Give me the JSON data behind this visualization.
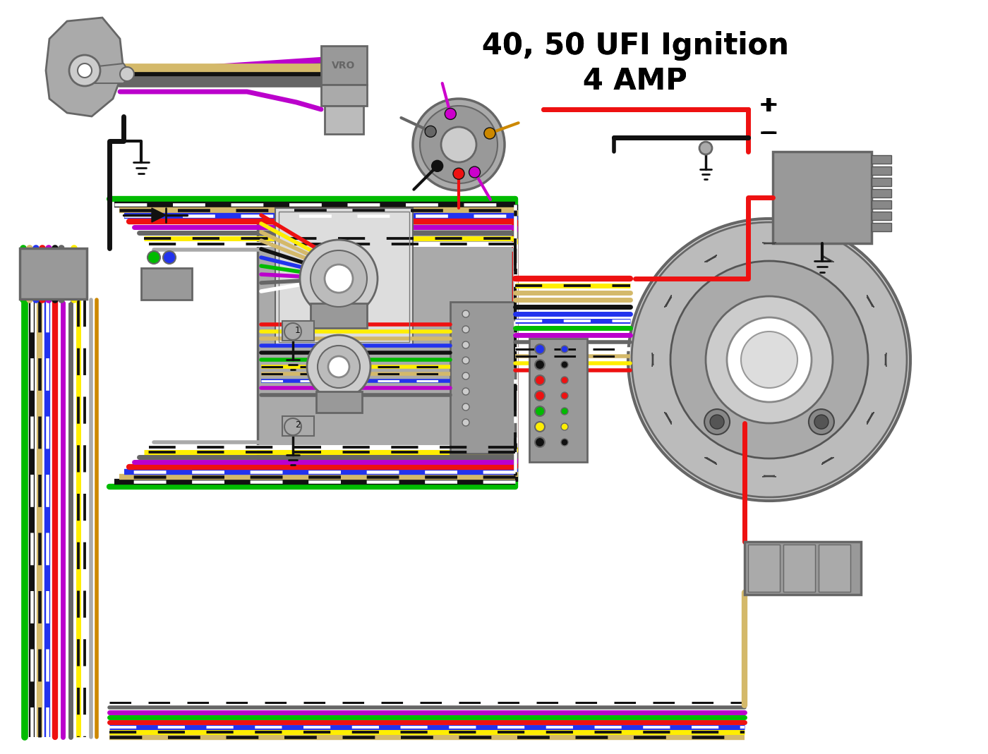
{
  "title_line1": "40, 50 UFI Ignition",
  "title_line2": "4 AMP",
  "bg_color": "#ffffff",
  "title_fontsize": 30,
  "title_fontweight": "bold",
  "wire_bundle": {
    "tan": "#d4b96a",
    "black": "#111111",
    "gray": "#888888",
    "red": "#ee1111",
    "yellow": "#ffee00",
    "purple": "#bb00cc",
    "blue": "#1122ee",
    "white": "#ffffff",
    "green": "#00bb00",
    "orange": "#ff8800",
    "light_tan": "#e8d89a",
    "dark_gray": "#666666",
    "magenta": "#cc00cc"
  }
}
